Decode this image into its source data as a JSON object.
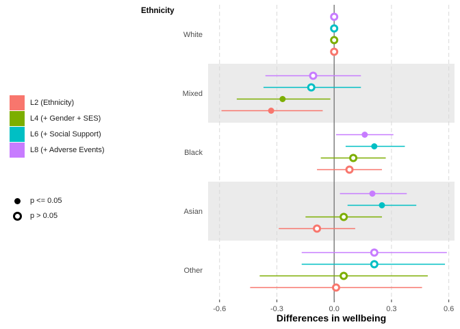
{
  "chart_data": {
    "type": "forest",
    "strip_title": "Ethnicity",
    "xlabel": "Differences in wellbeing",
    "xlim": [
      -0.66,
      0.63
    ],
    "xticks": [
      -0.6,
      -0.3,
      0.0,
      0.3,
      0.6
    ],
    "xtick_labels": [
      "-0.6",
      "-0.3",
      "0.0",
      "0.3",
      "0.6"
    ],
    "categories": [
      "White",
      "Mixed",
      "Black",
      "Asian",
      "Other"
    ],
    "shaded_categories": [
      "Mixed",
      "Asian"
    ],
    "series": [
      {
        "name": "L2 (Ethnicity)",
        "color": "#F8766D",
        "points": [
          {
            "est": 0.0,
            "lo": 0.0,
            "hi": 0.0,
            "p_sig": false
          },
          {
            "est": -0.33,
            "lo": -0.59,
            "hi": -0.06,
            "p_sig": true
          },
          {
            "est": 0.08,
            "lo": -0.09,
            "hi": 0.25,
            "p_sig": false
          },
          {
            "est": -0.09,
            "lo": -0.29,
            "hi": 0.11,
            "p_sig": false
          },
          {
            "est": 0.01,
            "lo": -0.44,
            "hi": 0.46,
            "p_sig": false
          }
        ]
      },
      {
        "name": "L4 (+ Gender + SES)",
        "color": "#7CAE00",
        "points": [
          {
            "est": 0.0,
            "lo": 0.0,
            "hi": 0.0,
            "p_sig": false
          },
          {
            "est": -0.27,
            "lo": -0.51,
            "hi": -0.02,
            "p_sig": true
          },
          {
            "est": 0.1,
            "lo": -0.07,
            "hi": 0.27,
            "p_sig": false
          },
          {
            "est": 0.05,
            "lo": -0.15,
            "hi": 0.25,
            "p_sig": false
          },
          {
            "est": 0.05,
            "lo": -0.39,
            "hi": 0.49,
            "p_sig": false
          }
        ]
      },
      {
        "name": "L6 (+ Social Support)",
        "color": "#00BFC4",
        "points": [
          {
            "est": 0.0,
            "lo": 0.0,
            "hi": 0.0,
            "p_sig": false
          },
          {
            "est": -0.12,
            "lo": -0.37,
            "hi": 0.14,
            "p_sig": false
          },
          {
            "est": 0.21,
            "lo": 0.06,
            "hi": 0.37,
            "p_sig": true
          },
          {
            "est": 0.25,
            "lo": 0.07,
            "hi": 0.43,
            "p_sig": true
          },
          {
            "est": 0.21,
            "lo": -0.17,
            "hi": 0.58,
            "p_sig": false
          }
        ]
      },
      {
        "name": "L8 (+ Adverse Events)",
        "color": "#C77CFF",
        "points": [
          {
            "est": 0.0,
            "lo": 0.0,
            "hi": 0.0,
            "p_sig": false
          },
          {
            "est": -0.11,
            "lo": -0.36,
            "hi": 0.14,
            "p_sig": false
          },
          {
            "est": 0.16,
            "lo": 0.01,
            "hi": 0.31,
            "p_sig": true
          },
          {
            "est": 0.2,
            "lo": 0.03,
            "hi": 0.38,
            "p_sig": true
          },
          {
            "est": 0.21,
            "lo": -0.17,
            "hi": 0.59,
            "p_sig": false
          }
        ]
      }
    ],
    "significance_legend": [
      "p <= 0.05",
      "p > 0.05"
    ],
    "grid": true,
    "reference_line": 0.0,
    "legend_position": "left"
  }
}
